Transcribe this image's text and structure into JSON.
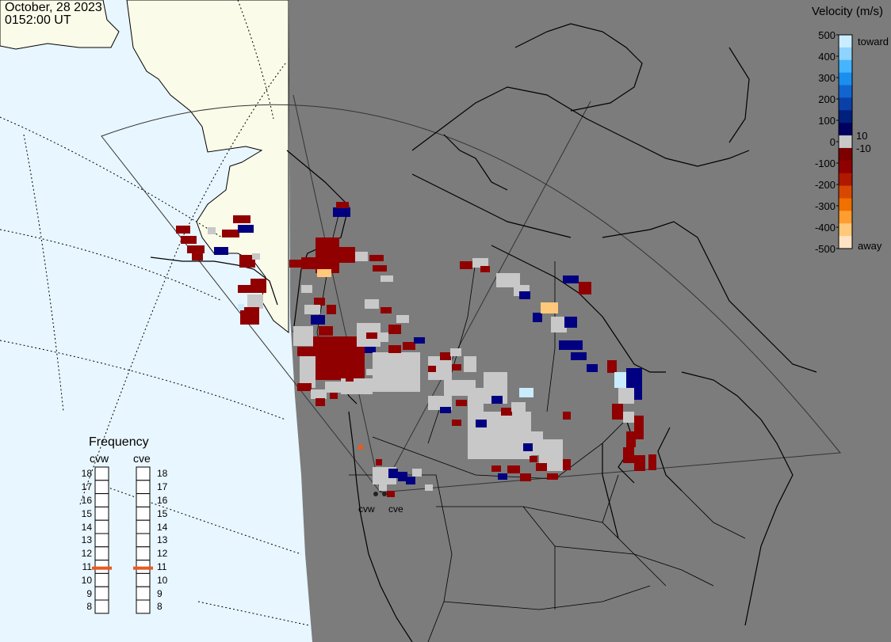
{
  "timestamp": {
    "date": "October, 28 2023",
    "time": "0152:00 UT"
  },
  "velocity_legend": {
    "title": "Velocity (m/s)",
    "ticks_left": [
      "500",
      "400",
      "300",
      "200",
      "100",
      "0",
      "-100",
      "-200",
      "-300",
      "-400",
      "-500"
    ],
    "ticks_right": [
      "10",
      "-10"
    ],
    "toward_label": "toward",
    "away_label": "away",
    "colors": [
      "#c9ecff",
      "#8fd3ff",
      "#45b5ff",
      "#1a8fef",
      "#1264cf",
      "#0a40a8",
      "#00207d",
      "#000060",
      "#c8c8c8",
      "#7d0000",
      "#900000",
      "#b01800",
      "#d84800",
      "#f07000",
      "#ff9d30",
      "#ffc87a",
      "#ffe3c4"
    ]
  },
  "frequency_panel": {
    "title": "Frequency",
    "radars": [
      {
        "name": "cvw",
        "frequency_mhz": 10.9
      },
      {
        "name": "cve",
        "frequency_mhz": 10.9
      }
    ],
    "scale": [
      "18",
      "17",
      "16",
      "15",
      "14",
      "13",
      "12",
      "11",
      "10",
      "9",
      "8"
    ],
    "marker_color": "#e85a20"
  },
  "map": {
    "sites": [
      {
        "name": "cvw"
      },
      {
        "name": "cve"
      }
    ],
    "colors": {
      "ocean": "#e8f6ff",
      "land_day": "#fbfbe9",
      "night": "#7c7c7c",
      "ground_scatter": "#c8c8c8"
    }
  }
}
